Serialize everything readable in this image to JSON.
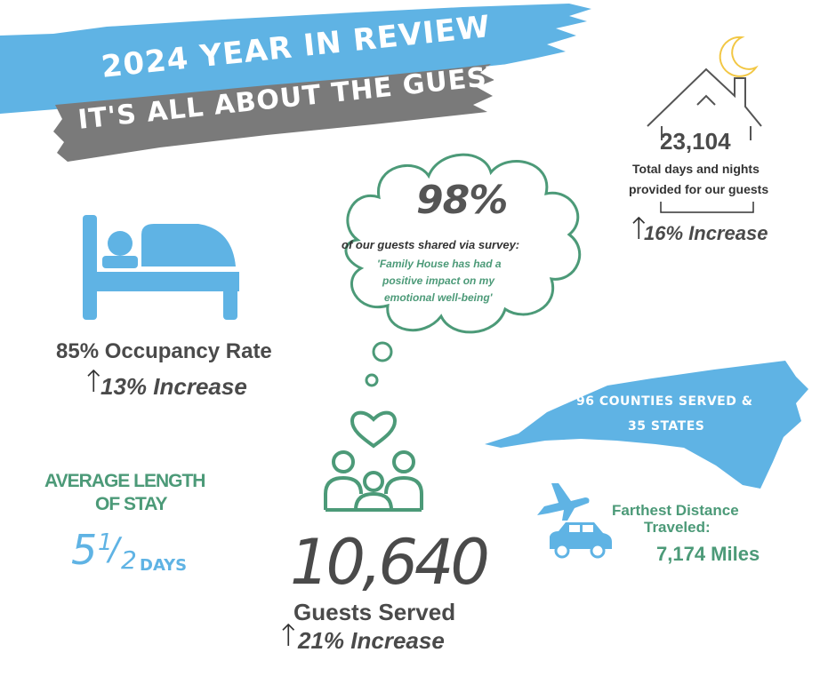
{
  "header": {
    "title": "2024 YEAR IN REVIEW",
    "subtitle": "IT'S ALL ABOUT THE GUESTS"
  },
  "colors": {
    "brand_blue": "#5fb3e4",
    "brand_grey": "#7a7a7a",
    "accent_green": "#4c9a78",
    "moon_yellow": "#f2c744",
    "text_dark": "#4a4a4a"
  },
  "days_nights": {
    "value": "23,104",
    "label_line1": "Total days and nights",
    "label_line2": "provided for our guests",
    "increase": "16% Increase",
    "icon": "house-with-moon-icon"
  },
  "survey": {
    "percent": "98%",
    "intro": "of our guests shared via survey:",
    "quote_line1": "'Family House has had a",
    "quote_line2": "positive impact on my",
    "quote_line3": "emotional well-being'",
    "icon": "thought-cloud-icon"
  },
  "occupancy": {
    "label": "85% Occupancy Rate",
    "increase": "13% Increase",
    "icon": "bed-icon"
  },
  "stay": {
    "label_line1": "AVERAGE LENGTH",
    "label_line2": "OF STAY",
    "value_whole": "5",
    "value_num": "1",
    "value_den": "2",
    "unit": "DAYS"
  },
  "guests": {
    "value": "10,640",
    "label": "Guests Served",
    "increase": "21% Increase",
    "icon": "family-heart-icon"
  },
  "counties": {
    "line1": "96 COUNTIES SERVED &",
    "line2": "35 STATES",
    "icon": "north-carolina-map-icon"
  },
  "distance": {
    "label_line1": "Farthest Distance",
    "label_line2": "Traveled:",
    "value": "7,174 Miles",
    "icons": [
      "airplane-icon",
      "car-icon"
    ]
  }
}
